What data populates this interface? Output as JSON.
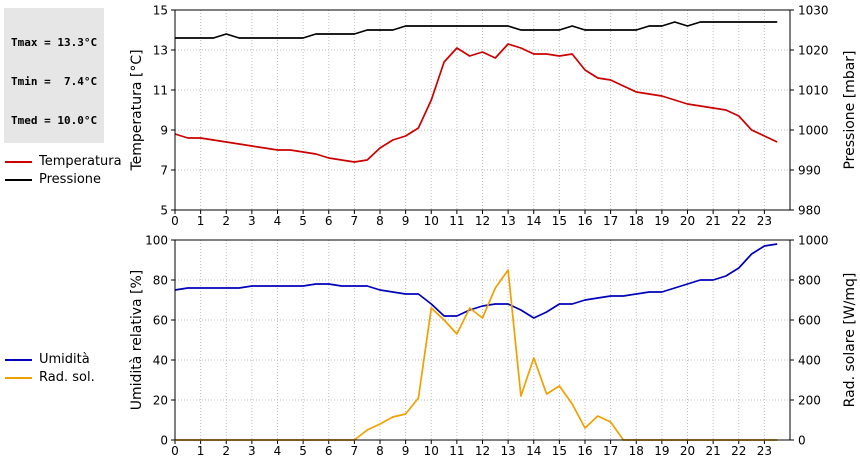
{
  "stats": {
    "tmax": "Tmax = 13.3°C",
    "tmin": "Tmin =  7.4°C",
    "tmed": "Tmed = 10.0°C"
  },
  "legend_top": [
    {
      "label": "Temperatura",
      "color": "#cc0000"
    },
    {
      "label": "Pressione",
      "color": "#000000"
    }
  ],
  "legend_bottom": [
    {
      "label": "Umidità",
      "color": "#0000bb"
    },
    {
      "label": "Rad. sol.",
      "color": "#f0a000"
    }
  ],
  "chart_data": [
    {
      "type": "line",
      "xlim": [
        0,
        24
      ],
      "xticks": [
        0,
        1,
        2,
        3,
        4,
        5,
        6,
        7,
        8,
        9,
        10,
        11,
        12,
        13,
        14,
        15,
        16,
        17,
        18,
        19,
        20,
        21,
        22,
        23
      ],
      "ylabel": "Temperatura [°C]",
      "y2label": "Pressione [mbar]",
      "ylim": [
        5,
        15
      ],
      "yticks": [
        5,
        7,
        9,
        11,
        13,
        15
      ],
      "y2lim": [
        980,
        1030
      ],
      "y2ticks": [
        980,
        990,
        1000,
        1010,
        1020,
        1030
      ],
      "grid": true,
      "series": [
        {
          "name": "Temperatura",
          "axis": "left",
          "color": "#cc0000",
          "x": [
            0,
            0.5,
            1,
            1.5,
            2,
            2.5,
            3,
            3.5,
            4,
            4.5,
            5,
            5.5,
            6,
            6.5,
            7,
            7.5,
            8,
            8.5,
            9,
            9.5,
            10,
            10.5,
            11,
            11.5,
            12,
            12.5,
            13,
            13.5,
            14,
            14.5,
            15,
            15.5,
            16,
            16.5,
            17,
            17.5,
            18,
            18.5,
            19,
            19.5,
            20,
            20.5,
            21,
            21.5,
            22,
            22.5,
            23,
            23.5
          ],
          "values": [
            8.8,
            8.6,
            8.6,
            8.5,
            8.4,
            8.3,
            8.2,
            8.1,
            8.0,
            8.0,
            7.9,
            7.8,
            7.6,
            7.5,
            7.4,
            7.5,
            8.1,
            8.5,
            8.7,
            9.1,
            10.5,
            12.4,
            13.1,
            12.7,
            12.9,
            12.6,
            13.3,
            13.1,
            12.8,
            12.8,
            12.7,
            12.8,
            12.0,
            11.6,
            11.5,
            11.2,
            10.9,
            10.8,
            10.7,
            10.5,
            10.3,
            10.2,
            10.1,
            10.0,
            9.7,
            9.0,
            8.7,
            8.4
          ]
        },
        {
          "name": "Pressione",
          "axis": "right",
          "color": "#000000",
          "x": [
            0,
            0.5,
            1,
            1.5,
            2,
            2.5,
            3,
            3.5,
            4,
            4.5,
            5,
            5.5,
            6,
            6.5,
            7,
            7.5,
            8,
            8.5,
            9,
            9.5,
            10,
            10.5,
            11,
            11.5,
            12,
            12.5,
            13,
            13.5,
            14,
            14.5,
            15,
            15.5,
            16,
            16.5,
            17,
            17.5,
            18,
            18.5,
            19,
            19.5,
            20,
            20.5,
            21,
            21.5,
            22,
            22.5,
            23,
            23.5
          ],
          "values": [
            1023,
            1023,
            1023,
            1023,
            1024,
            1023,
            1023,
            1023,
            1023,
            1023,
            1023,
            1024,
            1024,
            1024,
            1024,
            1025,
            1025,
            1025,
            1026,
            1026,
            1026,
            1026,
            1026,
            1026,
            1026,
            1026,
            1026,
            1025,
            1025,
            1025,
            1025,
            1026,
            1025,
            1025,
            1025,
            1025,
            1025,
            1026,
            1026,
            1027,
            1026,
            1027,
            1027,
            1027,
            1027,
            1027,
            1027,
            1027
          ]
        }
      ]
    },
    {
      "type": "line",
      "xlim": [
        0,
        24
      ],
      "xticks": [
        0,
        1,
        2,
        3,
        4,
        5,
        6,
        7,
        8,
        9,
        10,
        11,
        12,
        13,
        14,
        15,
        16,
        17,
        18,
        19,
        20,
        21,
        22,
        23
      ],
      "ylabel": "Umidità relativa [%]",
      "y2label": "Rad. solare [W/mq]",
      "ylim": [
        0,
        100
      ],
      "yticks": [
        0,
        20,
        40,
        60,
        80,
        100
      ],
      "y2lim": [
        0,
        1000
      ],
      "y2ticks": [
        0,
        200,
        400,
        600,
        800,
        1000
      ],
      "grid": true,
      "series": [
        {
          "name": "Umidità",
          "axis": "left",
          "color": "#0000bb",
          "x": [
            0,
            0.5,
            1,
            1.5,
            2,
            2.5,
            3,
            3.5,
            4,
            4.5,
            5,
            5.5,
            6,
            6.5,
            7,
            7.5,
            8,
            8.5,
            9,
            9.5,
            10,
            10.5,
            11,
            11.5,
            12,
            12.5,
            13,
            13.5,
            14,
            14.5,
            15,
            15.5,
            16,
            16.5,
            17,
            17.5,
            18,
            18.5,
            19,
            19.5,
            20,
            20.5,
            21,
            21.5,
            22,
            22.5,
            23,
            23.5
          ],
          "values": [
            75,
            76,
            76,
            76,
            76,
            76,
            77,
            77,
            77,
            77,
            77,
            78,
            78,
            77,
            77,
            77,
            75,
            74,
            73,
            73,
            68,
            62,
            62,
            65,
            67,
            68,
            68,
            65,
            61,
            64,
            68,
            68,
            70,
            71,
            72,
            72,
            73,
            74,
            74,
            76,
            78,
            80,
            80,
            82,
            86,
            93,
            97,
            98
          ]
        },
        {
          "name": "Rad. sol.",
          "axis": "right",
          "color": "#f0a000",
          "x": [
            0,
            0.5,
            1,
            1.5,
            2,
            2.5,
            3,
            3.5,
            4,
            4.5,
            5,
            5.5,
            6,
            6.5,
            7,
            7.5,
            8,
            8.5,
            9,
            9.5,
            10,
            10.5,
            11,
            11.5,
            12,
            12.5,
            13,
            13.5,
            14,
            14.5,
            15,
            15.5,
            16,
            16.5,
            17,
            17.5,
            18,
            18.5,
            19,
            19.5,
            20,
            20.5,
            21,
            21.5,
            22,
            22.5,
            23,
            23.5
          ],
          "values": [
            0,
            0,
            0,
            0,
            0,
            0,
            0,
            0,
            0,
            0,
            0,
            0,
            0,
            0,
            0,
            50,
            80,
            115,
            130,
            210,
            660,
            600,
            530,
            660,
            610,
            760,
            850,
            220,
            410,
            230,
            270,
            180,
            60,
            120,
            90,
            0,
            0,
            0,
            0,
            0,
            0,
            0,
            0,
            0,
            0,
            0,
            0,
            0
          ]
        }
      ]
    }
  ]
}
